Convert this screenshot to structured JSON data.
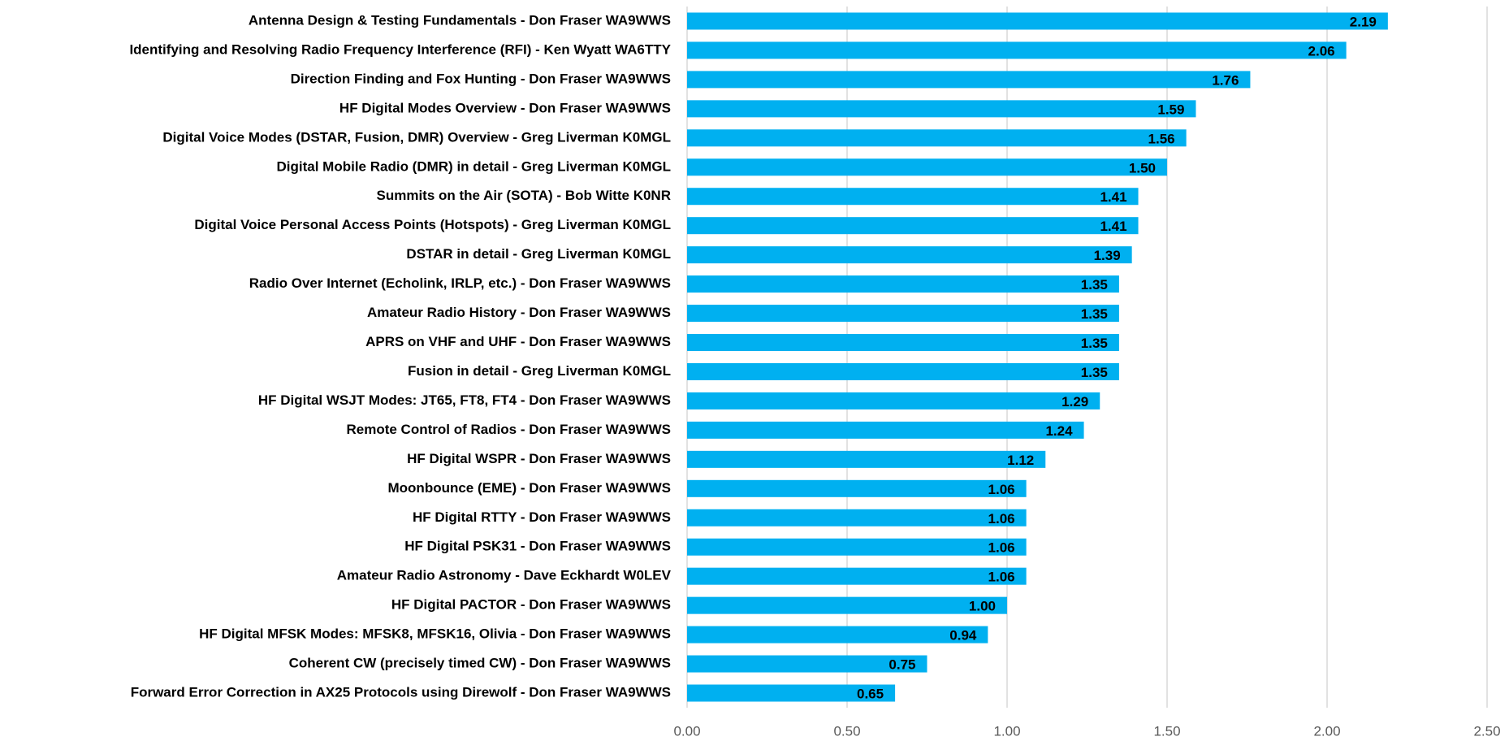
{
  "chart_data": {
    "type": "barh",
    "categories": [
      "Antenna Design & Testing Fundamentals - Don Fraser WA9WWS",
      "Identifying and Resolving Radio Frequency Interference (RFI) - Ken Wyatt WA6TTY",
      "Direction Finding and Fox Hunting - Don Fraser WA9WWS",
      "HF Digital Modes Overview - Don Fraser WA9WWS",
      "Digital Voice Modes (DSTAR, Fusion, DMR) Overview - Greg Liverman K0MGL",
      "Digital Mobile Radio (DMR) in detail - Greg Liverman K0MGL",
      "Summits on the Air (SOTA) - Bob Witte K0NR",
      "Digital Voice Personal Access Points (Hotspots) - Greg Liverman K0MGL",
      "DSTAR in detail - Greg Liverman K0MGL",
      "Radio Over Internet (Echolink, IRLP, etc.) - Don Fraser WA9WWS",
      "Amateur Radio History - Don Fraser WA9WWS",
      "APRS on VHF and UHF - Don Fraser WA9WWS",
      "Fusion in detail - Greg Liverman K0MGL",
      "HF Digital WSJT Modes: JT65, FT8, FT4 - Don Fraser WA9WWS",
      "Remote Control of Radios - Don Fraser WA9WWS",
      "HF Digital WSPR - Don Fraser WA9WWS",
      "Moonbounce (EME) - Don Fraser WA9WWS",
      "HF Digital RTTY - Don Fraser WA9WWS",
      "HF Digital PSK31 - Don Fraser WA9WWS",
      "Amateur Radio Astronomy - Dave Eckhardt W0LEV",
      "HF Digital PACTOR - Don Fraser WA9WWS",
      "HF Digital MFSK Modes: MFSK8, MFSK16, Olivia - Don Fraser WA9WWS",
      "Coherent CW (precisely timed CW) - Don Fraser WA9WWS",
      "Forward Error Correction in AX25 Protocols using Direwolf - Don Fraser WA9WWS"
    ],
    "values": [
      2.19,
      2.06,
      1.76,
      1.59,
      1.56,
      1.5,
      1.41,
      1.41,
      1.39,
      1.35,
      1.35,
      1.35,
      1.35,
      1.29,
      1.24,
      1.12,
      1.06,
      1.06,
      1.06,
      1.06,
      1.0,
      0.94,
      0.75,
      0.65
    ],
    "value_labels": [
      "2.19",
      "2.06",
      "1.76",
      "1.59",
      "1.56",
      "1.50",
      "1.41",
      "1.41",
      "1.39",
      "1.35",
      "1.35",
      "1.35",
      "1.35",
      "1.29",
      "1.24",
      "1.12",
      "1.06",
      "1.06",
      "1.06",
      "1.06",
      "1.00",
      "0.94",
      "0.75",
      "0.65"
    ],
    "color": "#00b0f0",
    "xlim": [
      0,
      2.5
    ],
    "xticks": [
      {
        "value": 0,
        "label": "0.00"
      },
      {
        "value": 0.5,
        "label": "0.50"
      },
      {
        "value": 1,
        "label": "1.00"
      },
      {
        "value": 1.5,
        "label": "1.50"
      },
      {
        "value": 2,
        "label": "2.00"
      },
      {
        "value": 2.5,
        "label": "2.50"
      }
    ],
    "grid": true
  }
}
